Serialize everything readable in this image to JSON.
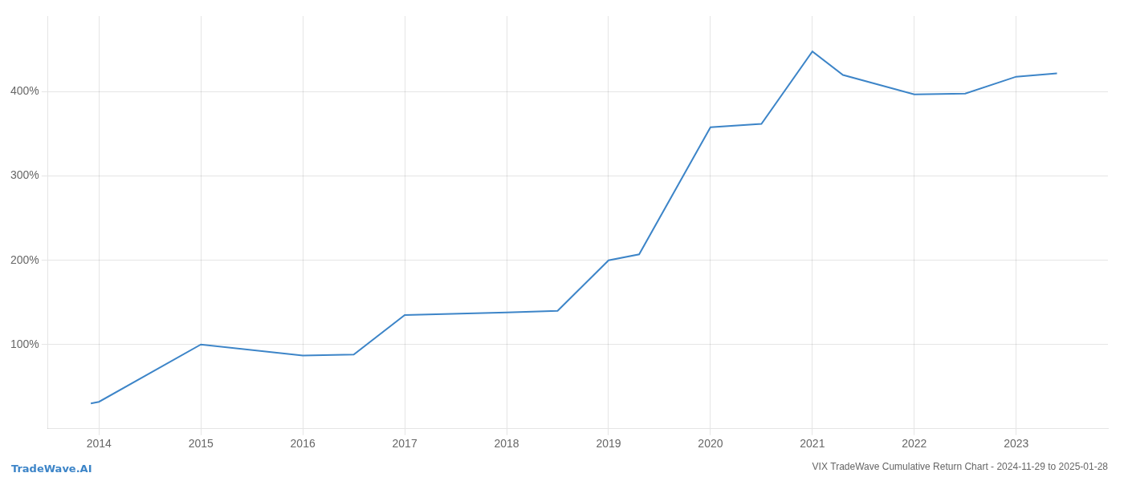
{
  "chart_data": {
    "type": "line",
    "title": "VIX TradeWave Cumulative Return Chart - 2024-11-29 to 2025-01-28",
    "annotations": [
      "TradeWave.AI"
    ],
    "x": [
      2013.92,
      2014.0,
      2015.0,
      2016.0,
      2016.5,
      2017.0,
      2018.0,
      2018.5,
      2019.0,
      2019.3,
      2020.0,
      2020.5,
      2021.0,
      2021.3,
      2022.0,
      2022.5,
      2023.0,
      2023.4
    ],
    "values": [
      30,
      32,
      100,
      87,
      88,
      135,
      138,
      140,
      200,
      207,
      358,
      362,
      448,
      420,
      397,
      398,
      418,
      422
    ],
    "color": "#3d85c8",
    "xlim": [
      2013.5,
      2023.9
    ],
    "xticks": [
      2014,
      2015,
      2016,
      2017,
      2018,
      2019,
      2020,
      2021,
      2022,
      2023
    ],
    "ylim": [
      0,
      490
    ],
    "yticks": [
      {
        "value": 100,
        "label": "100%"
      },
      {
        "value": 200,
        "label": "200%"
      },
      {
        "value": 300,
        "label": "300%"
      },
      {
        "value": 400,
        "label": "400%"
      }
    ],
    "grid": true
  }
}
